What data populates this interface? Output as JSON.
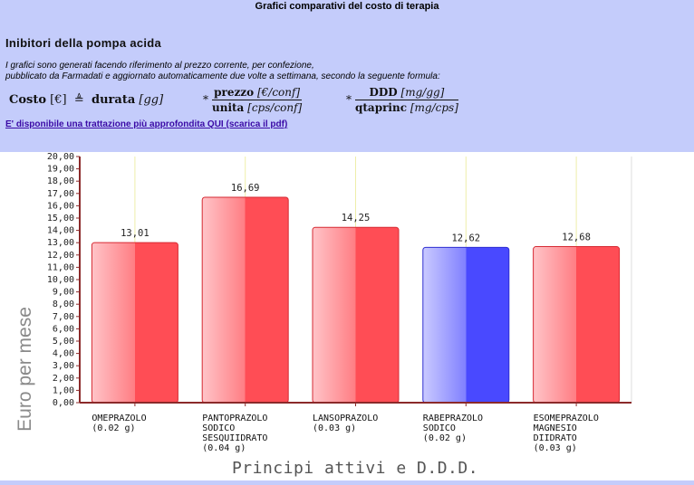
{
  "header": {
    "title": "Grafici comparativi del costo di terapia"
  },
  "section": {
    "title": "Inibitori della pompa acida",
    "desc_line1": "I grafici sono generati facendo riferimento al prezzo corrente, per confezione,",
    "desc_line2": "pubblicato da Farmadati e aggiornato automaticamente due volte a settimana, secondo la seguente formula:"
  },
  "formula": {
    "costo": "Costo",
    "costo_unit": "[€]",
    "eq": "≜",
    "durata": "durata",
    "durata_unit": "[gg]",
    "times1": "*",
    "times2": "*",
    "prezzo": "prezzo",
    "prezzo_unit": "[€/conf]",
    "unita": "unita",
    "unita_unit": "[cps/conf]",
    "ddd": "DDD",
    "ddd_unit": "[mg/gg]",
    "qta": "qtaprinc",
    "qta_unit": "[mg/cps]"
  },
  "link": {
    "label": "E' disponibile una trattazione più approfondita QUI (scarica il pdf)"
  },
  "colors": {
    "red_bar": "#ff4d55",
    "red_bar_light": "#ffc4c8",
    "blue_bar": "#4949ff",
    "blue_bar_light": "#cacaff",
    "axis_line": "#8b2a2a",
    "grid": "#eeeeaa"
  },
  "chart_data": {
    "type": "bar",
    "title": "",
    "ylabel": "Euro per mese",
    "xlabel": "Principi attivi e D.D.D.",
    "ylim": [
      0,
      20
    ],
    "ytick_step": 1,
    "ytick_labels": [
      "0,00",
      "1,00",
      "2,00",
      "3,00",
      "4,00",
      "5,00",
      "6,00",
      "7,00",
      "8,00",
      "9,00",
      "10,00",
      "11,00",
      "12,00",
      "13,00",
      "14,00",
      "15,00",
      "16,00",
      "17,00",
      "18,00",
      "19,00",
      "20,00"
    ],
    "grid": true,
    "categories": [
      [
        "OMEPRAZOLO",
        "(0.02 g)"
      ],
      [
        "PANTOPRAZOLO",
        "SODICO",
        "SESQUIIDRATO",
        "(0.04 g)"
      ],
      [
        "LANSOPRAZOLO",
        "(0.03 g)"
      ],
      [
        "RABEPRAZOLO",
        "SODICO",
        "(0.02 g)"
      ],
      [
        "ESOMEPRAZOLO",
        "MAGNESIO",
        "DIIDRATO",
        "(0.03 g)"
      ]
    ],
    "values": [
      13.01,
      16.69,
      14.25,
      12.62,
      12.68
    ],
    "value_labels": [
      "13,01",
      "16,69",
      "14,25",
      "12,62",
      "12,68"
    ],
    "bar_colors": [
      "red",
      "red",
      "red",
      "blue",
      "red"
    ]
  }
}
